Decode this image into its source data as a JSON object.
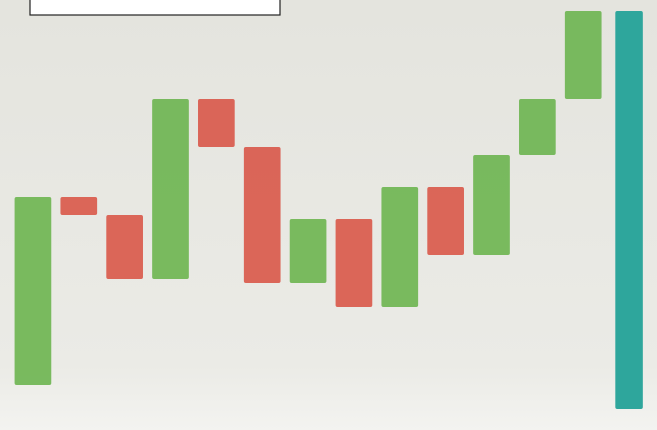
{
  "chart_data": {
    "type": "waterfall",
    "values": [
      47,
      -4.5,
      -16,
      45,
      -12,
      -34,
      16,
      -22,
      30,
      -17,
      25,
      14,
      22
    ],
    "total": 93.5,
    "increase_color": "#6fb552",
    "decrease_color": "#d95a4c",
    "total_color": "#2ea69c",
    "ylim": [
      -6,
      96
    ],
    "grid": false
  }
}
